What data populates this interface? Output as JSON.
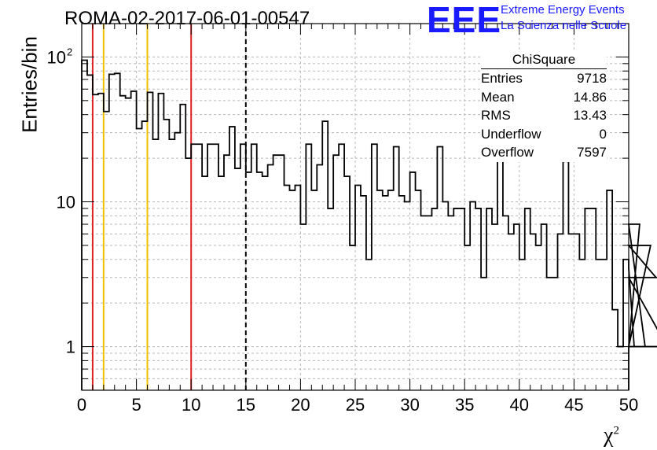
{
  "title": "ROMA-02-2017-06-01-00547",
  "logo": {
    "text": "EEE",
    "tagline_1": "Extreme Energy Events",
    "tagline_2": "La Scienza nelle Scuole",
    "color": "#1a1aff"
  },
  "stats": {
    "title": "ChiSquare",
    "rows": [
      {
        "label": "Entries",
        "value": "9718"
      },
      {
        "label": "Mean",
        "value": "14.86"
      },
      {
        "label": "RMS",
        "value": "13.43"
      },
      {
        "label": "Underflow",
        "value": "0"
      },
      {
        "label": "Overflow",
        "value": "7597"
      }
    ]
  },
  "chart_data": {
    "type": "histogram",
    "xlabel": "χ",
    "xlabel_sup": "2",
    "ylabel": "Entries/bin",
    "xlim": [
      0,
      50
    ],
    "ylim": [
      0.5,
      170
    ],
    "log_y": true,
    "grid": true,
    "bin_width": 0.5,
    "x_ticks": [
      0,
      5,
      10,
      15,
      20,
      25,
      30,
      35,
      40,
      45,
      50
    ],
    "y_ticks": [
      {
        "value": 1,
        "label": "1"
      },
      {
        "value": 10,
        "label": "10"
      },
      {
        "value": 100,
        "label": "10",
        "sup": "2"
      }
    ],
    "counts": [
      95,
      75,
      55,
      56,
      42,
      76,
      77,
      54,
      52,
      58,
      32,
      36,
      57,
      27,
      56,
      37,
      27,
      30,
      47,
      20,
      25,
      25,
      15,
      25,
      25,
      15,
      21,
      33,
      17,
      25,
      16,
      25,
      16,
      15,
      18,
      21,
      21,
      13,
      12,
      13,
      7,
      25,
      12,
      18,
      36,
      9,
      21,
      25,
      15,
      5,
      13,
      11,
      4,
      25,
      12,
      11,
      12,
      24,
      11,
      10,
      16,
      12,
      8,
      8,
      9,
      24,
      10,
      8,
      9,
      9,
      5,
      10,
      9,
      3,
      9,
      7,
      25,
      8,
      6,
      7,
      4,
      9,
      6,
      5,
      7,
      3,
      3,
      6,
      19,
      6,
      6,
      4,
      9,
      9,
      4,
      4,
      12,
      1.8,
      1,
      4,
      3.5,
      1,
      7,
      1,
      5,
      3,
      3,
      1
    ],
    "vlines": [
      {
        "x": 1,
        "color": "#dd2222",
        "style": "solid"
      },
      {
        "x": 2,
        "color": "#f0c000",
        "style": "solid"
      },
      {
        "x": 6,
        "color": "#f0c000",
        "style": "solid"
      },
      {
        "x": 10,
        "color": "#dd2222",
        "style": "solid"
      },
      {
        "x": 15,
        "color": "#000000",
        "style": "dashed"
      }
    ]
  }
}
